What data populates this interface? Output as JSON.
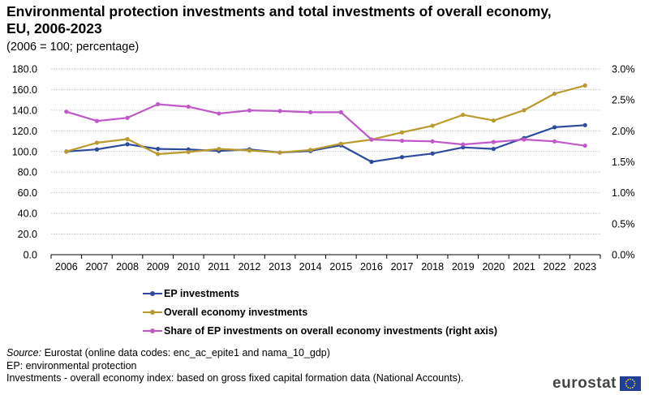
{
  "chart_data": {
    "type": "line",
    "title": "Environmental protection investments and total investments of overall economy, EU, 2006-2023",
    "subtitle": "(2006 = 100; percentage)",
    "x": [
      "2006",
      "2007",
      "2008",
      "2009",
      "2010",
      "2011",
      "2012",
      "2013",
      "2014",
      "2015",
      "2016",
      "2017",
      "2018",
      "2019",
      "2020",
      "2021",
      "2022",
      "2023"
    ],
    "y_left_ticks": [
      "0.0",
      "20.0",
      "40.0",
      "60.0",
      "80.0",
      "100.0",
      "120.0",
      "140.0",
      "160.0",
      "180.0"
    ],
    "y_right_ticks": [
      "0.0%",
      "0.5%",
      "1.0%",
      "1.5%",
      "2.0%",
      "2.5%",
      "3.0%"
    ],
    "ylim_left": [
      0,
      180
    ],
    "ylim_right": [
      0,
      3.0
    ],
    "grid": true,
    "series": [
      {
        "name": "EP investments",
        "axis": "left",
        "color": "#2d4b9e",
        "values": [
          100.0,
          102.0,
          107.0,
          102.5,
          102.0,
          100.5,
          102.0,
          99.0,
          100.5,
          106.0,
          90.0,
          94.5,
          98.0,
          104.0,
          102.5,
          113.0,
          123.5,
          125.5
        ]
      },
      {
        "name": "Overall economy investments",
        "axis": "left",
        "color": "#b99a2e",
        "values": [
          100.0,
          108.5,
          112.0,
          97.5,
          99.5,
          102.5,
          101.0,
          99.0,
          101.5,
          107.5,
          111.5,
          118.5,
          125.0,
          135.5,
          130.0,
          140.0,
          156.0,
          164.0
        ]
      },
      {
        "name": "Share of EP investments on overall economy investments (right axis)",
        "axis": "right",
        "color": "#c059c8",
        "values": [
          2.31,
          2.16,
          2.21,
          2.43,
          2.39,
          2.28,
          2.33,
          2.32,
          2.3,
          2.3,
          1.86,
          1.84,
          1.83,
          1.78,
          1.82,
          1.86,
          1.83,
          1.76
        ]
      }
    ]
  },
  "footer": {
    "source_label": "Source:",
    "source_text": " Eurostat (online data codes: enc_ac_epite1 and nama_10_gdp)",
    "note1": "EP: environmental protection",
    "note2": "Investments  - overall economy index: based on gross fixed capital formation data (National Accounts)."
  },
  "logo": {
    "text": "eurostat"
  }
}
